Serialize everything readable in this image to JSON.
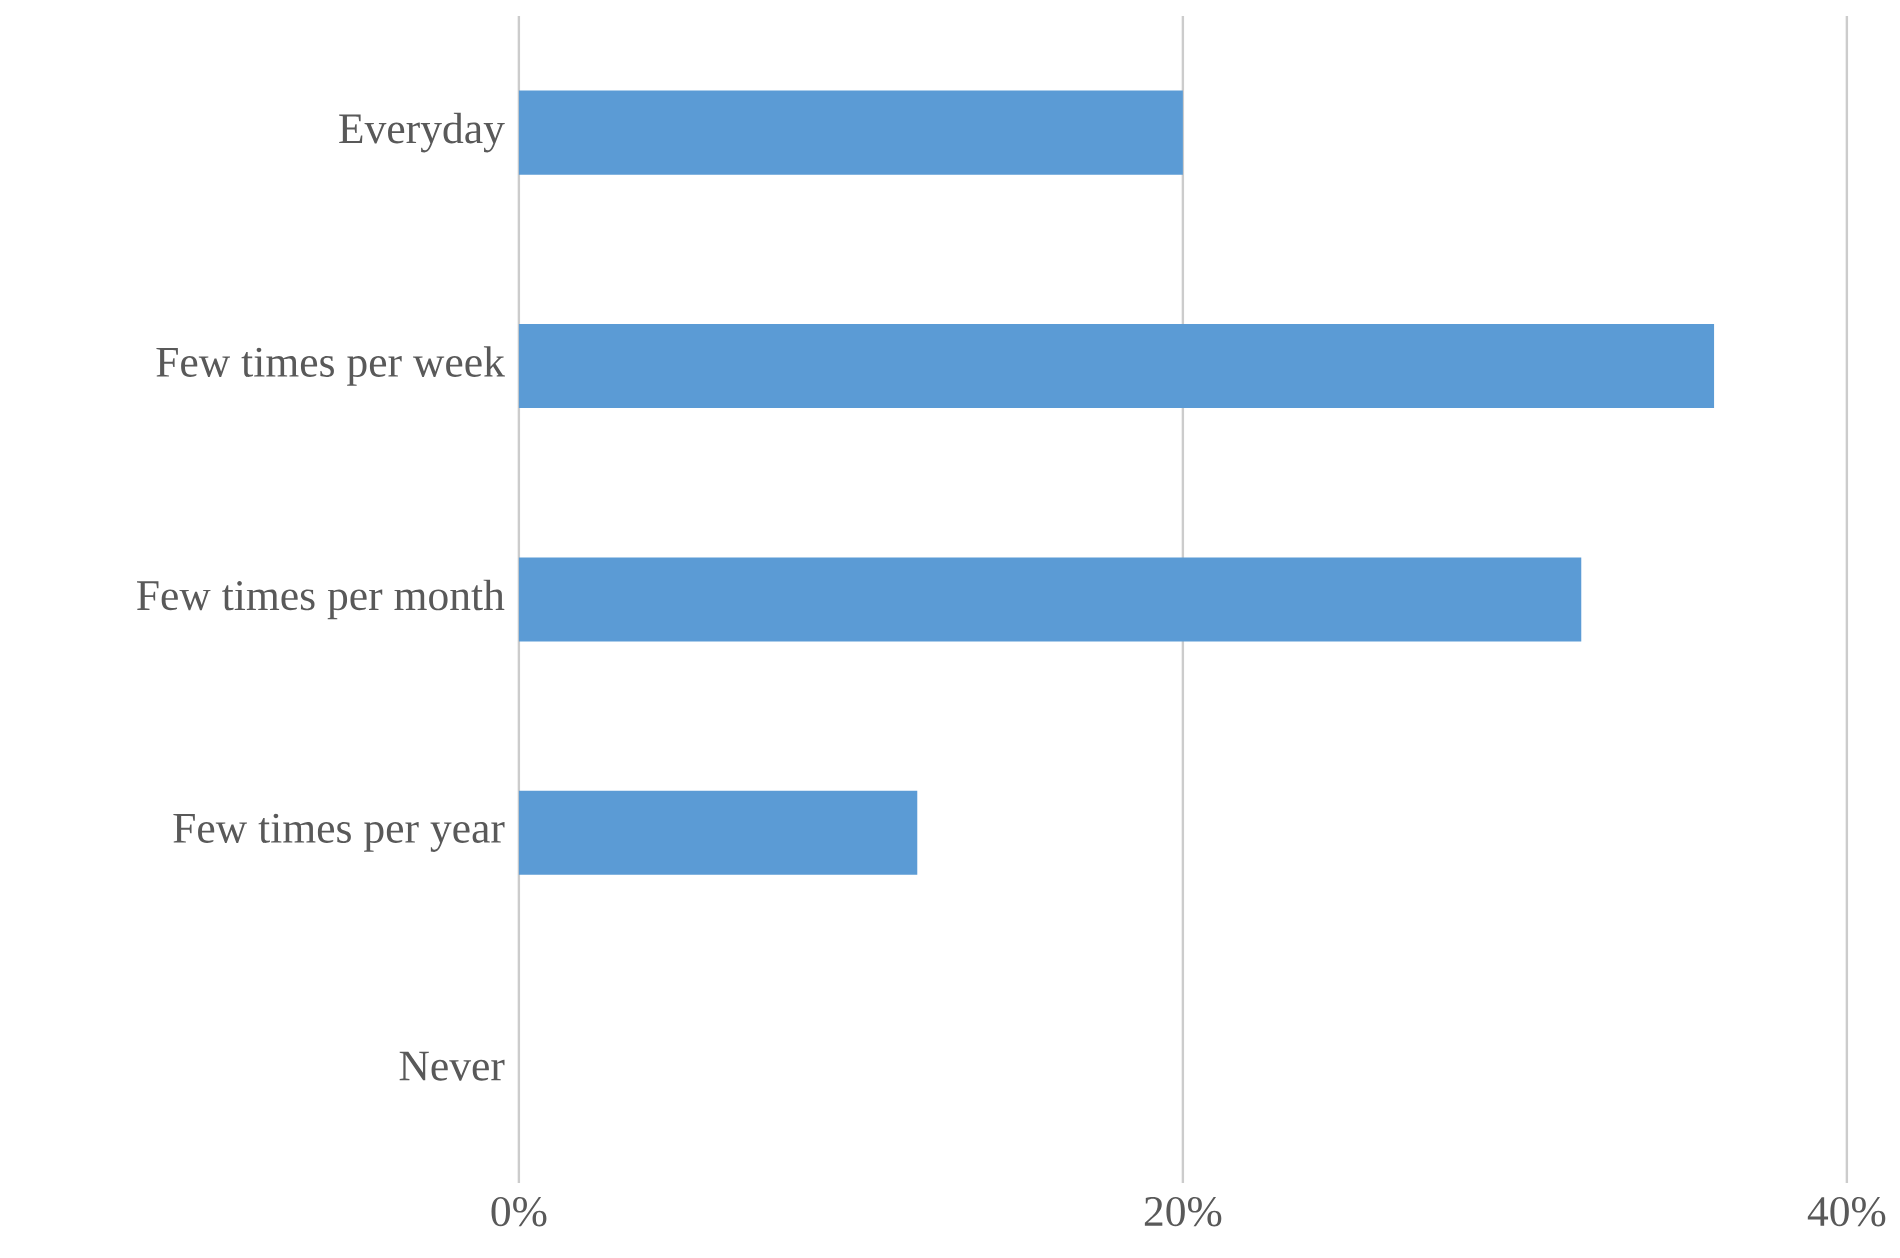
{
  "chart_data": {
    "type": "bar",
    "orientation": "horizontal",
    "categories": [
      "Everyday",
      "Few times per week",
      "Few times per month",
      "Few times per year",
      "Never"
    ],
    "values": [
      20,
      36,
      32,
      12,
      0
    ],
    "color": "#5b9bd5",
    "xlim": [
      0,
      40
    ],
    "xticks": [
      {
        "value": 0,
        "label": "0%"
      },
      {
        "value": 20,
        "label": "20%"
      },
      {
        "value": 40,
        "label": "40%"
      }
    ],
    "grid": "x"
  }
}
